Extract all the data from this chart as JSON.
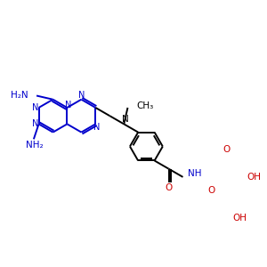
{
  "bg_color": "#ffffff",
  "blue_color": "#0000cc",
  "black_color": "#000000",
  "red_color": "#cc0000",
  "lw": 1.4,
  "figsize": [
    3.0,
    3.0
  ],
  "dpi": 100,
  "xlim": [
    0,
    300
  ],
  "ylim": [
    0,
    300
  ]
}
